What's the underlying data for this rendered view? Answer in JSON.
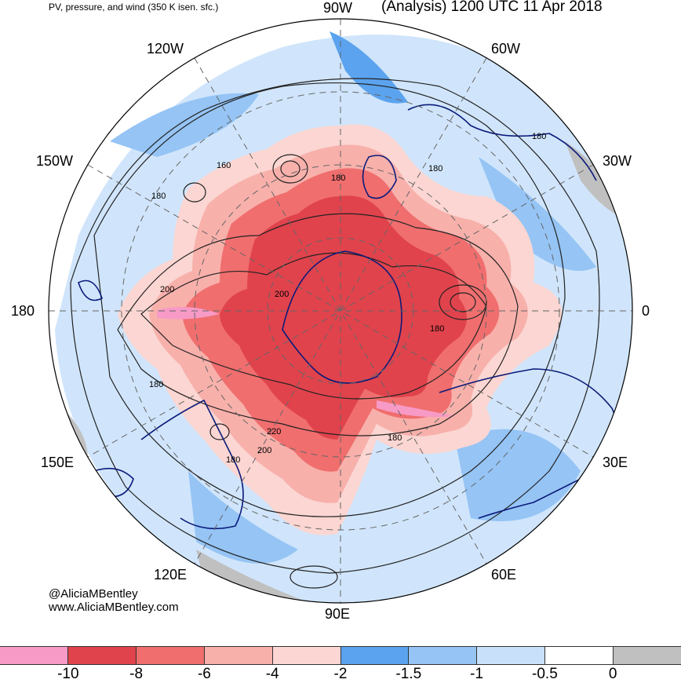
{
  "title_left": "PV, pressure, and wind (350 K isen. sfc.)",
  "title_right": "(Analysis) 1200 UTC 11 Apr 2018",
  "longitude_labels": {
    "top": "90W",
    "top_left": "120W",
    "top_right": "60W",
    "upper_left": "150W",
    "upper_right": "30W",
    "left": "180",
    "right": "0",
    "lower_left": "150E",
    "lower_right": "30E",
    "bottom_left": "120E",
    "bottom_right": "60E",
    "bottom": "90E"
  },
  "contour_labels": [
    "160",
    "180",
    "180",
    "180",
    "200",
    "200",
    "180",
    "180",
    "180",
    "220",
    "200",
    "180",
    "180"
  ],
  "credit": {
    "handle": "@AliciaMBentley",
    "website": "www.AliciaMBentley.com"
  },
  "colorbar": {
    "colors": [
      "#f79ac6",
      "#e0434c",
      "#f06e6e",
      "#f8b0ab",
      "#fbd6d2",
      "#5ba3ee",
      "#95c4f5",
      "#c8e0fa",
      "#ffffff",
      "#c0c0c0"
    ],
    "tick_labels": [
      "-10",
      "-8",
      "-6",
      "-4",
      "-2",
      "-1.5",
      "-1",
      "-0.5",
      "0"
    ]
  }
}
